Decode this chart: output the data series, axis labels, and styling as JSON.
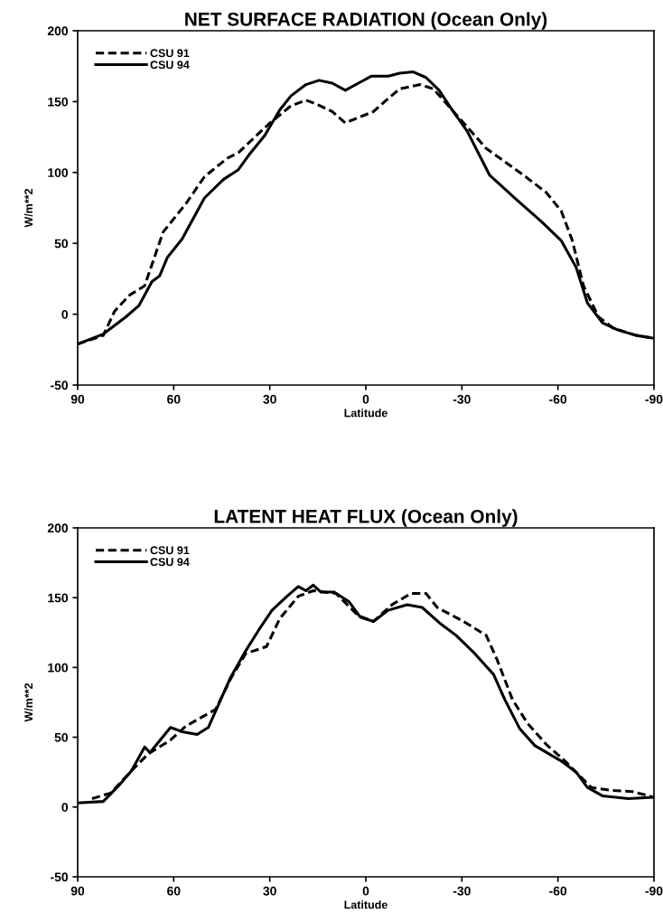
{
  "chart_data": [
    {
      "type": "line",
      "title": "NET SURFACE RADIATION (Ocean Only)",
      "xlabel": "Latitude",
      "ylabel": "W/m**2",
      "xlim": [
        90,
        -90
      ],
      "xticks": [
        90,
        60,
        30,
        0,
        -30,
        -60,
        -90
      ],
      "ylim": [
        -50,
        200
      ],
      "yticks": [
        -50,
        0,
        50,
        100,
        150,
        200
      ],
      "legend": "top left",
      "grid": false,
      "marker": "none",
      "series": [
        {
          "name": "CSU 91",
          "color": "#000000",
          "line_style": "dashed",
          "x": [
            90,
            82,
            78.5,
            73.8,
            69.1,
            63.3,
            56.2,
            50.4,
            43.3,
            39.8,
            30.4,
            23.4,
            18.7,
            15.2,
            10.5,
            6.4,
            -2.4,
            -5.9,
            -10.6,
            -17,
            -21.1,
            -25.8,
            -37.6,
            -49.3,
            -56.3,
            -61,
            -64.5,
            -68,
            -72.7,
            -77.4,
            -84.5,
            -90
          ],
          "values": [
            -21,
            -15,
            2,
            13.5,
            20,
            58,
            78,
            97,
            110,
            114,
            134,
            147,
            151,
            148,
            143,
            135,
            143,
            150,
            159,
            162,
            159,
            147,
            117,
            98,
            86,
            73,
            52,
            20,
            -2,
            -10,
            -15,
            -17
          ]
        },
        {
          "name": "CSU 94",
          "color": "#000000",
          "line_style": "solid",
          "x": [
            90,
            82,
            75,
            70.9,
            66.8,
            64.4,
            62,
            57.4,
            50.4,
            44.5,
            39.8,
            36.3,
            31.6,
            26.9,
            23.4,
            18.7,
            14.6,
            10.5,
            6.4,
            2.3,
            -1.8,
            -7,
            -10.6,
            -14.7,
            -18.8,
            -22.9,
            -27,
            -31.7,
            -38.7,
            -47,
            -55,
            -61,
            -65.7,
            -69.2,
            -73.9,
            -78.6,
            -84.5,
            -90
          ],
          "values": [
            -21,
            -14,
            -2,
            6,
            23,
            27,
            40,
            53,
            82,
            95,
            102,
            113,
            126,
            144,
            154,
            162,
            165,
            163,
            158,
            163,
            168,
            168,
            170,
            171,
            167,
            158,
            144,
            129,
            98,
            81,
            65,
            52,
            33,
            8,
            -6,
            -11,
            -15,
            -17
          ]
        }
      ]
    },
    {
      "type": "line",
      "title": "LATENT HEAT FLUX (Ocean Only)",
      "xlabel": "Latitude",
      "ylabel": "W/m**2",
      "xlim": [
        90,
        -90
      ],
      "xticks": [
        90,
        60,
        30,
        0,
        -30,
        -60,
        -90
      ],
      "ylim": [
        -50,
        200
      ],
      "yticks": [
        -50,
        0,
        50,
        100,
        150,
        200
      ],
      "legend": "top left",
      "grid": false,
      "marker": "none",
      "series": [
        {
          "name": "CSU 91",
          "color": "#000000",
          "line_style": "dashed",
          "x": [
            85.5,
            79.7,
            73.2,
            68,
            61,
            56.2,
            46.9,
            42.2,
            37.5,
            31,
            26.9,
            21.1,
            16.4,
            9.3,
            2.3,
            -2.4,
            -8.2,
            -14.1,
            -18.8,
            -22.3,
            -30.5,
            -37.6,
            -41.1,
            -45.8,
            -50.5,
            -56.3,
            -62.2,
            -70.4,
            -76.3,
            -83.3,
            -90
          ],
          "values": [
            6,
            10,
            26,
            38,
            48,
            58,
            70,
            92,
            110,
            115,
            135,
            151,
            155,
            153,
            137,
            133,
            145,
            153,
            153,
            143,
            133,
            123,
            105,
            77,
            60,
            45,
            33,
            14,
            12,
            11,
            7
          ]
        },
        {
          "name": "CSU 94",
          "color": "#000000",
          "line_style": "solid",
          "x": [
            90,
            82,
            77.3,
            73.2,
            69.1,
            67.4,
            61,
            57.4,
            52.7,
            49.2,
            42.2,
            37.5,
            33.4,
            29.3,
            24.6,
            21.1,
            18.7,
            16.4,
            14,
            9.9,
            5.2,
            1.7,
            -2.4,
            -7,
            -12.9,
            -17.6,
            -23.5,
            -28.2,
            -34,
            -39.9,
            -43.4,
            -48.1,
            -52.8,
            -61,
            -65.7,
            -69.2,
            -73.9,
            -82,
            -90
          ],
          "values": [
            3,
            4,
            15,
            26,
            43,
            39,
            57,
            54,
            52,
            57,
            93,
            112,
            127,
            141,
            151,
            158,
            155,
            159,
            154,
            154,
            147,
            136,
            133,
            141,
            145,
            143,
            131,
            123,
            110,
            95,
            77,
            56,
            44,
            33,
            25,
            14,
            8,
            6,
            7
          ]
        }
      ]
    }
  ]
}
